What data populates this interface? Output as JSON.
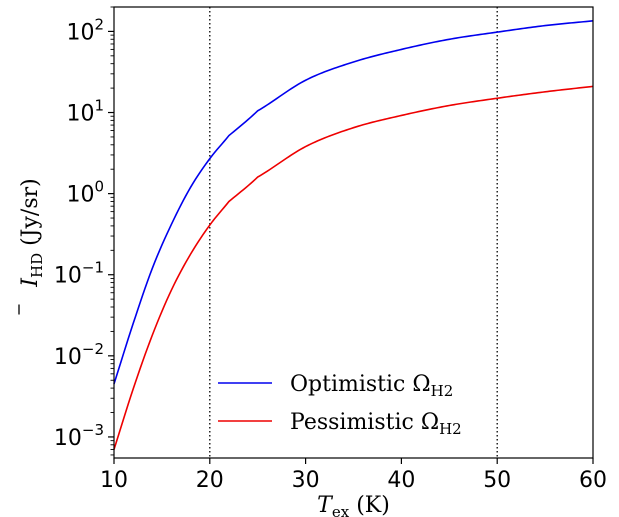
{
  "chart_data": {
    "type": "line",
    "title": "",
    "xlabel": "T_ex (K)",
    "xlabel_main": "T",
    "xlabel_sub": "ex",
    "xlabel_unit": " (K)",
    "ylabel": "Ī_HD (Jy/sr)",
    "ylabel_main": "I",
    "ylabel_sub": "HD",
    "ylabel_unit": " (Jy/sr)",
    "xlim": [
      10,
      60
    ],
    "ylim": [
      0.00055,
      200
    ],
    "yscale": "log",
    "grid": false,
    "legend_position": "lower-right",
    "x_ticks": [
      10,
      20,
      30,
      40,
      50,
      60
    ],
    "x_tick_labels": [
      "10",
      "20",
      "30",
      "40",
      "50",
      "60"
    ],
    "y_ticks": [
      0.001,
      0.01,
      0.1,
      1,
      10,
      100
    ],
    "y_tick_labels": [
      {
        "base": "10",
        "exp": "−3"
      },
      {
        "base": "10",
        "exp": "−2"
      },
      {
        "base": "10",
        "exp": "−1"
      },
      {
        "base": "10",
        "exp": "0"
      },
      {
        "base": "10",
        "exp": "1"
      },
      {
        "base": "10",
        "exp": "2"
      }
    ],
    "vlines": [
      20,
      50
    ],
    "series": [
      {
        "name": "Optimistic Ω_H2",
        "legend_main": "Optimistic Ω",
        "legend_sub": "H2",
        "color": "#0000ee",
        "x": [
          10,
          12,
          14,
          16,
          18,
          20,
          22,
          25,
          30,
          35,
          40,
          45,
          50,
          55,
          60
        ],
        "y": [
          0.0045,
          0.025,
          0.12,
          0.42,
          1.2,
          2.7,
          5.2,
          10.5,
          25,
          42,
          60,
          80,
          98,
          118,
          135
        ]
      },
      {
        "name": "Pessimistic Ω_H2",
        "legend_main": "Pessimistic Ω",
        "legend_sub": "H2",
        "color": "#ee0000",
        "x": [
          10,
          12,
          14,
          16,
          18,
          20,
          22,
          25,
          30,
          35,
          40,
          45,
          50,
          55,
          60
        ],
        "y": [
          0.0007,
          0.0039,
          0.018,
          0.065,
          0.18,
          0.41,
          0.8,
          1.6,
          3.8,
          6.5,
          9.2,
          12.2,
          15,
          18,
          21
        ]
      }
    ]
  }
}
